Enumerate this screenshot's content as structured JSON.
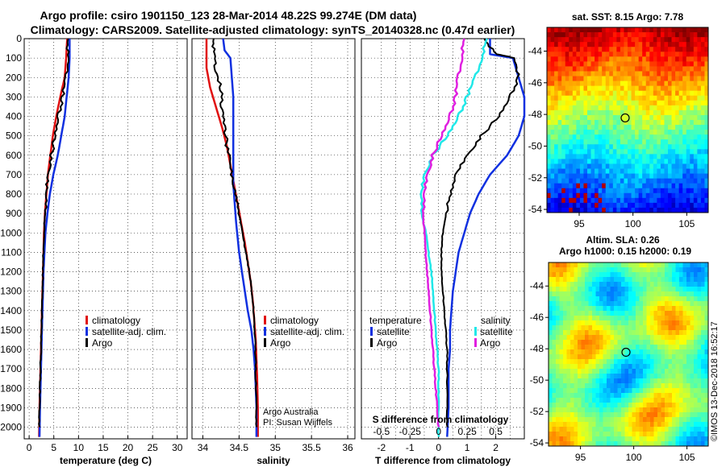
{
  "titles": {
    "line1": "Argo profile: csiro 1901150_123 28-Mar-2014 48.22S 99.274E (DM data)",
    "line2": "Climatology: CARS2009. Satellite-adjusted climatology: synTS_20140328.nc (0.47d earlier)"
  },
  "watermark": "©IMOS 13-Dec-2018 16:52:17",
  "colors": {
    "climatology": "#e01010",
    "satellite": "#1030e0",
    "argo": "#000000",
    "cyan": "#20e8e8",
    "magenta": "#e020e0"
  },
  "depth_ticks": [
    0,
    100,
    200,
    300,
    400,
    500,
    600,
    700,
    800,
    900,
    1000,
    1100,
    1200,
    1300,
    1400,
    1500,
    1600,
    1700,
    1800,
    1900,
    2000
  ],
  "chart_data": [
    {
      "type": "line",
      "panel": "temperature",
      "xlabel": "temperature (deg C)",
      "xticks": [
        0,
        5,
        10,
        15,
        20,
        25,
        30
      ],
      "xlim": [
        -1,
        32
      ],
      "ylim": [
        0,
        2060
      ],
      "legend": [
        "climatology",
        "satellite-adj. clim.",
        "Argo"
      ],
      "series": [
        {
          "name": "climatology",
          "color": "#e01010",
          "x": [
            7.7,
            7.5,
            7.2,
            6.3,
            5.5,
            4.8,
            4.3,
            3.8,
            3.5,
            3.2,
            3.0,
            2.9,
            2.8,
            2.7,
            2.6,
            2.5,
            2.4,
            2.3,
            2.2,
            2.1,
            2.0
          ],
          "y": [
            0,
            100,
            200,
            300,
            400,
            500,
            600,
            700,
            800,
            900,
            1000,
            1100,
            1200,
            1300,
            1400,
            1500,
            1600,
            1700,
            1800,
            1900,
            2050
          ]
        },
        {
          "name": "satellite-adj. clim.",
          "color": "#1030e0",
          "x": [
            8.2,
            8.2,
            8.0,
            7.6,
            7.2,
            6.5,
            5.8,
            4.9,
            4.2,
            3.7,
            3.3,
            3.1,
            2.9,
            2.8,
            2.7,
            2.6,
            2.5,
            2.4,
            2.3,
            2.2,
            2.1
          ],
          "y": [
            0,
            100,
            200,
            300,
            400,
            500,
            600,
            700,
            800,
            900,
            1000,
            1100,
            1200,
            1300,
            1400,
            1500,
            1600,
            1700,
            1800,
            1900,
            2050
          ]
        },
        {
          "name": "Argo",
          "color": "#000000",
          "x": [
            7.9,
            7.8,
            7.6,
            6.8,
            5.9,
            5.2,
            4.5,
            3.8,
            3.5,
            3.2,
            3.0,
            2.9,
            2.8,
            2.7,
            2.6,
            2.5,
            2.4,
            2.3,
            2.2,
            2.1,
            2.05
          ],
          "y": [
            0,
            100,
            200,
            300,
            400,
            500,
            600,
            700,
            800,
            900,
            1000,
            1100,
            1200,
            1300,
            1400,
            1500,
            1600,
            1700,
            1800,
            1900,
            2000
          ]
        }
      ]
    },
    {
      "type": "line",
      "panel": "salinity",
      "xlabel": "salinity",
      "xticks": [
        34,
        34.5,
        35,
        35.5,
        36
      ],
      "xlim": [
        33.85,
        36.1
      ],
      "ylim": [
        0,
        2060
      ],
      "legend": [
        "climatology",
        "satellite-adj. clim.",
        "Argo"
      ],
      "notes": [
        "Argo Australia",
        "PI: Susan Wijffels"
      ],
      "series": [
        {
          "name": "climatology",
          "color": "#e01010",
          "x": [
            34.05,
            34.05,
            34.05,
            34.1,
            34.18,
            34.26,
            34.33,
            34.38,
            34.43,
            34.48,
            34.53,
            34.58,
            34.62,
            34.66,
            34.69,
            34.71,
            34.73,
            34.74,
            34.75,
            34.76,
            34.76
          ],
          "y": [
            0,
            100,
            150,
            250,
            350,
            450,
            550,
            650,
            750,
            850,
            950,
            1050,
            1150,
            1250,
            1350,
            1450,
            1550,
            1650,
            1750,
            1900,
            2050
          ]
        },
        {
          "name": "satellite-adj. clim.",
          "color": "#1030e0",
          "x": [
            34.28,
            34.3,
            34.38,
            34.4,
            34.42,
            34.42,
            34.42,
            34.42,
            34.42,
            34.42,
            34.43,
            34.46,
            34.5,
            34.56,
            34.62,
            34.67,
            34.7,
            34.72,
            34.73,
            34.74,
            34.74
          ],
          "y": [
            0,
            60,
            100,
            200,
            300,
            400,
            500,
            600,
            700,
            750,
            800,
            950,
            1100,
            1250,
            1400,
            1500,
            1600,
            1700,
            1800,
            1900,
            2050
          ]
        },
        {
          "name": "Argo",
          "color": "#000000",
          "x": [
            34.15,
            34.15,
            34.18,
            34.25,
            34.26,
            34.3,
            34.33,
            34.38,
            34.42,
            34.47,
            34.52,
            34.57,
            34.62,
            34.66,
            34.69,
            34.71,
            34.72,
            34.73,
            34.73,
            34.74,
            34.74
          ],
          "y": [
            0,
            80,
            150,
            250,
            350,
            450,
            550,
            650,
            750,
            850,
            950,
            1050,
            1150,
            1250,
            1350,
            1450,
            1550,
            1650,
            1750,
            1900,
            2000
          ]
        }
      ]
    },
    {
      "type": "line",
      "panel": "difference",
      "xlabel": "T difference from climatology",
      "top_xlabel": "S difference from climatology",
      "xticks": [
        -2,
        -1,
        0,
        1,
        2
      ],
      "top_xticks": [
        -0.5,
        -0.25,
        0,
        0.25,
        0.5
      ],
      "xlim": [
        -2.7,
        3.0
      ],
      "ylim": [
        0,
        2060
      ],
      "legend_left_title": "temperature",
      "legend_right_title": "salinity",
      "legend_left": [
        "satellite",
        "Argo"
      ],
      "legend_right": [
        "satellite",
        "Argo"
      ],
      "series": [
        {
          "name": "satellite",
          "color": "#1030e0",
          "x": [
            1.8,
            1.8,
            2.6,
            3.0,
            3.0,
            2.8,
            2.4,
            1.8,
            1.4,
            1.1,
            0.9,
            0.7,
            0.6,
            0.5,
            0.45,
            0.4,
            0.4,
            0.35,
            0.35,
            0.35,
            0.3
          ],
          "y": [
            0,
            80,
            100,
            300,
            400,
            500,
            600,
            700,
            800,
            900,
            1000,
            1100,
            1200,
            1300,
            1400,
            1500,
            1600,
            1700,
            1800,
            1900,
            2050
          ]
        },
        {
          "name": "Argo",
          "color": "#000000",
          "x": [
            1.6,
            2.0,
            2.7,
            2.8,
            2.5,
            2.1,
            1.5,
            1.0,
            0.6,
            0.4,
            0.25,
            0.15,
            0.1,
            0.1,
            0.15,
            0.2,
            0.25,
            0.3,
            0.3,
            0.3,
            0.3
          ],
          "y": [
            0,
            80,
            100,
            200,
            300,
            400,
            500,
            600,
            700,
            800,
            900,
            1000,
            1100,
            1200,
            1300,
            1400,
            1500,
            1600,
            1700,
            1900,
            2000
          ]
        },
        {
          "name": "satellite",
          "color": "#20e8e8",
          "x": [
            1.7,
            1.5,
            1.3,
            1.0,
            0.7,
            0.3,
            -0.2,
            -0.5,
            -0.6,
            -0.6,
            -0.45,
            -0.35,
            -0.25,
            -0.2,
            -0.15,
            -0.1,
            -0.05,
            0,
            0,
            0,
            0
          ],
          "y": [
            0,
            100,
            200,
            300,
            400,
            500,
            600,
            700,
            800,
            900,
            1000,
            1100,
            1200,
            1300,
            1400,
            1500,
            1600,
            1700,
            1800,
            1900,
            2050
          ]
        },
        {
          "name": "Argo",
          "color": "#e020e0",
          "x": [
            0.9,
            0.8,
            0.7,
            0.6,
            0.4,
            0.1,
            -0.2,
            -0.4,
            -0.5,
            -0.55,
            -0.5,
            -0.45,
            -0.4,
            -0.35,
            -0.3,
            -0.25,
            -0.2,
            -0.15,
            -0.1,
            -0.05,
            0
          ],
          "y": [
            0,
            100,
            200,
            300,
            400,
            500,
            600,
            700,
            800,
            900,
            1000,
            1100,
            1200,
            1300,
            1400,
            1500,
            1600,
            1700,
            1800,
            1900,
            2000
          ]
        }
      ]
    }
  ],
  "maps": {
    "sst": {
      "title": "sat. SST: 8.15 Argo: 7.78",
      "xticks": [
        95,
        100,
        105
      ],
      "yticks": [
        -44,
        -46,
        -48,
        -50,
        -52,
        -54
      ],
      "lon_range": [
        92,
        107
      ],
      "lat_range": [
        -54.2,
        -42.5
      ],
      "profile_lon": 99.274,
      "profile_lat": -48.22
    },
    "sla": {
      "title1": "Altim. SLA: 0.26",
      "title2": "Argo h1000: 0.15 h2000: 0.19",
      "xticks": [
        95,
        100,
        105
      ],
      "yticks": [
        -44,
        -46,
        -48,
        -50,
        -52,
        -54
      ],
      "lon_range": [
        92,
        107
      ],
      "lat_range": [
        -54.2,
        -42.5
      ],
      "profile_lon": 99.274,
      "profile_lat": -48.22
    }
  }
}
